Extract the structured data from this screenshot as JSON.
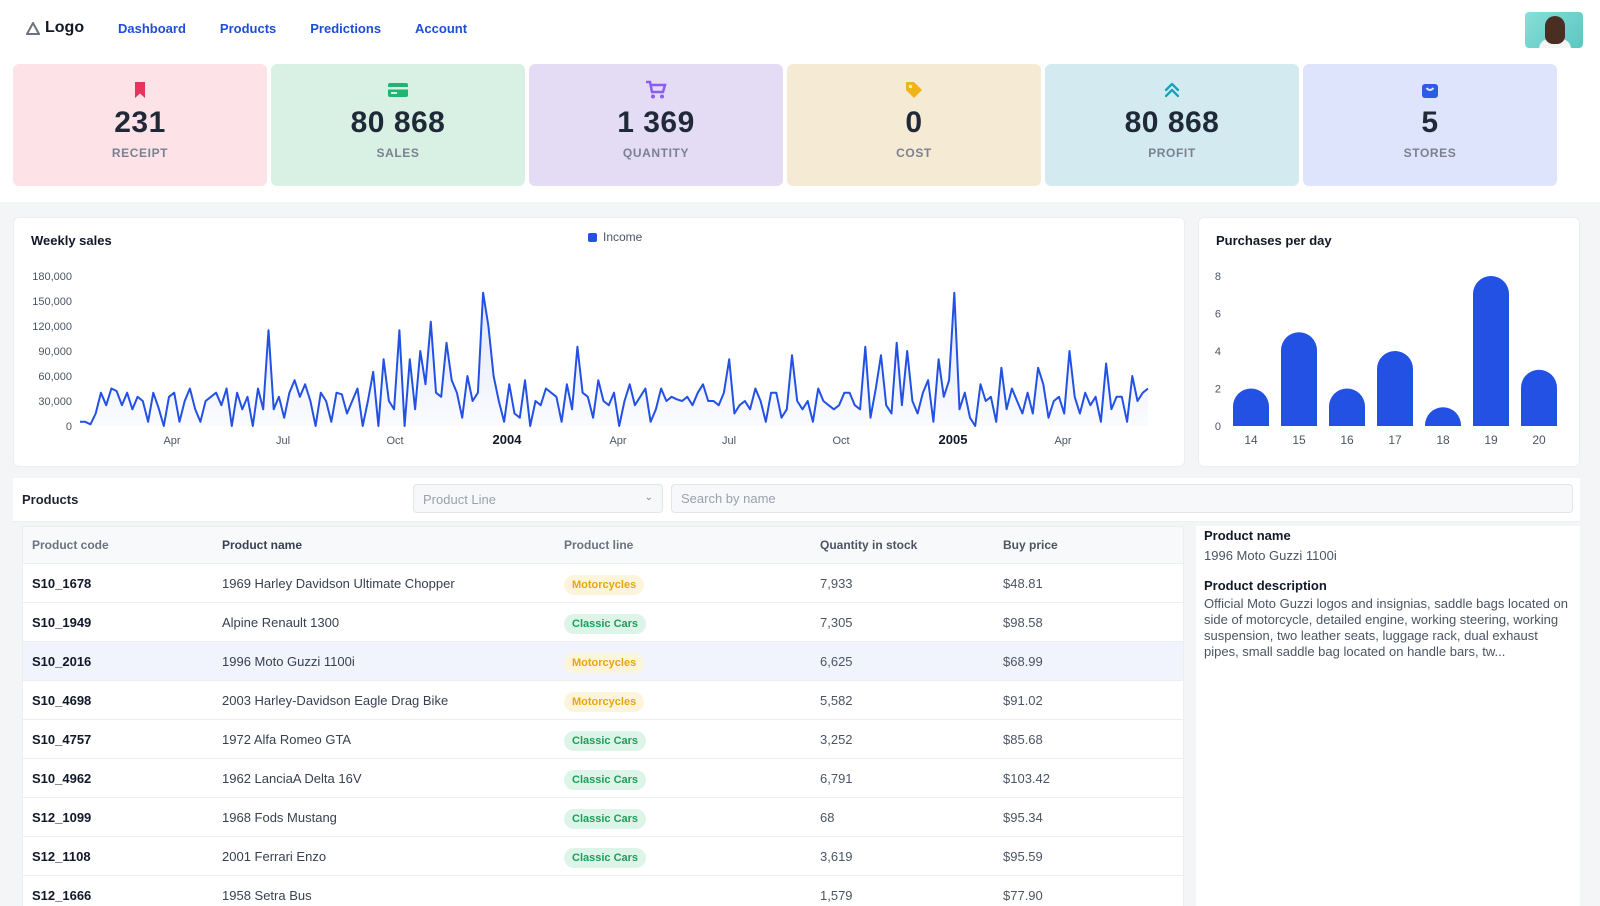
{
  "nav": {
    "logo": "Logo",
    "links": [
      "Dashboard",
      "Products",
      "Predictions",
      "Account"
    ]
  },
  "kpis": [
    {
      "value": "231",
      "label": "RECEIPT",
      "icon": "bookmark-icon",
      "bg": "#fde2e8",
      "color": "#e8335c"
    },
    {
      "value": "80 868",
      "label": "SALES",
      "icon": "credit-card-icon",
      "bg": "#d8f1e4",
      "color": "#1fb572"
    },
    {
      "value": "1 369",
      "label": "QUANTITY",
      "icon": "cart-icon",
      "bg": "#e3dcf4",
      "color": "#8b5cf6"
    },
    {
      "value": "0",
      "label": "COST",
      "icon": "tag-icon",
      "bg": "#f5ead4",
      "color": "#f1b31a"
    },
    {
      "value": "80 868",
      "label": "PROFIT",
      "icon": "chevrons-up-icon",
      "bg": "#d3eaf1",
      "color": "#16a3b8"
    },
    {
      "value": "5",
      "label": "STORES",
      "icon": "shopping-bag-icon",
      "bg": "#dde4fb",
      "color": "#2c5be5"
    }
  ],
  "weekly": {
    "title": "Weekly sales",
    "legend": "Income"
  },
  "purchases": {
    "title": "Purchases per day"
  },
  "chart_data": [
    {
      "type": "area",
      "title": "Weekly sales",
      "series": [
        {
          "name": "Income",
          "color": "#2351e4"
        }
      ],
      "ylim": [
        0,
        180000
      ],
      "yticks": [
        "180,000",
        "150,000",
        "120,000",
        "90,000",
        "60,000",
        "30,000",
        "0"
      ],
      "xticks": [
        "Apr",
        "Jul",
        "Oct",
        "2004",
        "Apr",
        "Jul",
        "Oct",
        "2005",
        "Apr"
      ],
      "x_range": [
        "2003-01",
        "2005-05"
      ],
      "values": [
        5000,
        5000,
        2000,
        15000,
        40000,
        25000,
        45000,
        42000,
        25000,
        40000,
        20000,
        35000,
        30000,
        5000,
        40000,
        22000,
        0,
        35000,
        40000,
        5000,
        30000,
        45000,
        20000,
        5000,
        30000,
        35000,
        40000,
        25000,
        45000,
        0,
        40000,
        20000,
        35000,
        0,
        45000,
        20000,
        115000,
        20000,
        35000,
        10000,
        40000,
        55000,
        35000,
        50000,
        30000,
        0,
        40000,
        30000,
        5000,
        40000,
        38000,
        15000,
        30000,
        45000,
        0,
        30000,
        65000,
        0,
        80000,
        30000,
        20000,
        115000,
        0,
        80000,
        20000,
        90000,
        50000,
        125000,
        40000,
        35000,
        100000,
        55000,
        40000,
        10000,
        60000,
        30000,
        40000,
        160000,
        120000,
        60000,
        30000,
        5000,
        50000,
        15000,
        10000,
        55000,
        0,
        30000,
        25000,
        45000,
        40000,
        35000,
        5000,
        50000,
        20000,
        95000,
        40000,
        35000,
        10000,
        55000,
        30000,
        25000,
        40000,
        0,
        30000,
        50000,
        25000,
        35000,
        45000,
        5000,
        20000,
        45000,
        30000,
        35000,
        32000,
        30000,
        35000,
        25000,
        40000,
        50000,
        30000,
        30000,
        25000,
        40000,
        80000,
        15000,
        25000,
        30000,
        20000,
        45000,
        30000,
        5000,
        40000,
        40000,
        10000,
        20000,
        85000,
        30000,
        20000,
        30000,
        5000,
        45000,
        30000,
        25000,
        20000,
        25000,
        40000,
        40000,
        25000,
        20000,
        95000,
        10000,
        45000,
        85000,
        25000,
        15000,
        100000,
        25000,
        90000,
        30000,
        15000,
        40000,
        55000,
        5000,
        80000,
        35000,
        55000,
        160000,
        20000,
        40000,
        10000,
        0,
        50000,
        30000,
        35000,
        5000,
        70000,
        20000,
        45000,
        30000,
        15000,
        40000,
        15000,
        70000,
        50000,
        10000,
        30000,
        35000,
        15000,
        90000,
        35000,
        15000,
        40000,
        25000,
        35000,
        5000,
        75000,
        20000,
        35000,
        35000,
        5000,
        60000,
        30000,
        40000,
        45000
      ]
    },
    {
      "type": "bar",
      "title": "Purchases per day",
      "categories": [
        "14",
        "15",
        "16",
        "17",
        "18",
        "19",
        "20"
      ],
      "values": [
        2,
        5,
        2,
        4,
        1,
        8,
        3
      ],
      "ylim": [
        0,
        8
      ],
      "yticks": [
        "8",
        "6",
        "4",
        "2",
        "0"
      ],
      "color": "#2351e4"
    }
  ],
  "products": {
    "title": "Products",
    "filter_placeholder": "Product Line",
    "search_placeholder": "Search by name",
    "columns": [
      "Product code",
      "Product name",
      "Product line",
      "Quantity in stock",
      "Buy price"
    ],
    "rows": [
      {
        "code": "S10_1678",
        "name": "1969 Harley Davidson Ultimate Chopper",
        "line": "Motorcycles",
        "qty": "7,933",
        "price": "$48.81"
      },
      {
        "code": "S10_1949",
        "name": "Alpine Renault 1300",
        "line": "Classic Cars",
        "qty": "7,305",
        "price": "$98.58"
      },
      {
        "code": "S10_2016",
        "name": "1996 Moto Guzzi 1100i",
        "line": "Motorcycles",
        "qty": "6,625",
        "price": "$68.99"
      },
      {
        "code": "S10_4698",
        "name": "2003 Harley-Davidson Eagle Drag Bike",
        "line": "Motorcycles",
        "qty": "5,582",
        "price": "$91.02"
      },
      {
        "code": "S10_4757",
        "name": "1972 Alfa Romeo GTA",
        "line": "Classic Cars",
        "qty": "3,252",
        "price": "$85.68"
      },
      {
        "code": "S10_4962",
        "name": "1962 LanciaA Delta 16V",
        "line": "Classic Cars",
        "qty": "6,791",
        "price": "$103.42"
      },
      {
        "code": "S12_1099",
        "name": "1968 Fods Mustang",
        "line": "Classic Cars",
        "qty": "68",
        "price": "$95.34"
      },
      {
        "code": "S12_1108",
        "name": "2001 Ferrari Enzo",
        "line": "Classic Cars",
        "qty": "3,619",
        "price": "$95.59"
      },
      {
        "code": "S12_1666",
        "name": "1958 Setra Bus",
        "line": "",
        "qty": "1,579",
        "price": "$77.90"
      }
    ]
  },
  "detail": {
    "name_label": "Product name",
    "name_value": "1996 Moto Guzzi 1100i",
    "desc_label": "Product description",
    "desc_value": "Official Moto Guzzi logos and insignias, saddle bags located on side of motorcycle, detailed engine, working steering, working suspension, two leather seats, luggage rack, dual exhaust pipes, small saddle bag located on handle bars, tw..."
  }
}
